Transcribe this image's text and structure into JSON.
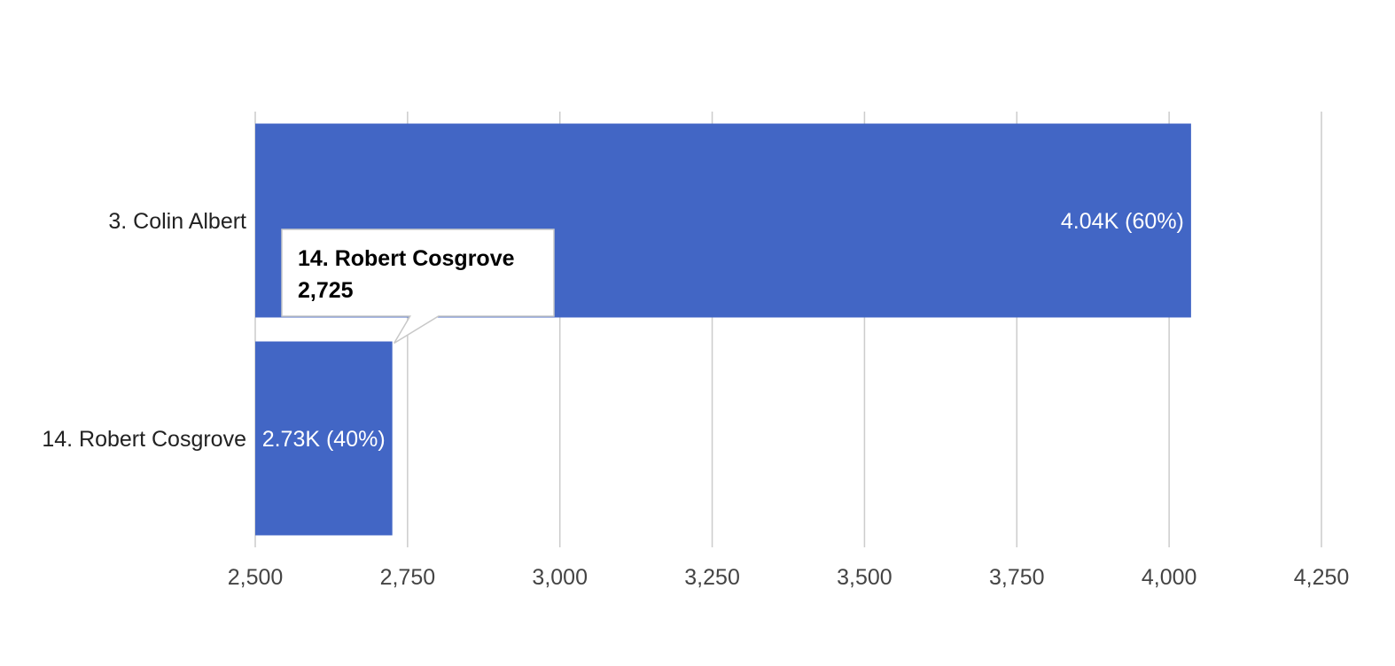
{
  "chart_data": {
    "type": "bar",
    "orientation": "horizontal",
    "categories": [
      "3. Colin Albert",
      "14. Robert Cosgrove"
    ],
    "values": [
      4036,
      2725
    ],
    "data_labels": [
      "4.04K (60%)",
      "2.73K (40%)"
    ],
    "xlim": [
      2500,
      4250
    ],
    "xticks": [
      2500,
      2750,
      3000,
      3250,
      3500,
      3750,
      4000,
      4250
    ],
    "xtick_labels": [
      "2,500",
      "2,750",
      "3,000",
      "3,250",
      "3,500",
      "3,750",
      "4,000",
      "4,250"
    ],
    "grid": true,
    "colors": {
      "bar": "#4266c5",
      "grid": "#cccccc"
    },
    "tooltip": {
      "category": "14. Robert Cosgrove",
      "title": "14. Robert Cosgrove",
      "value": "2,725"
    }
  }
}
